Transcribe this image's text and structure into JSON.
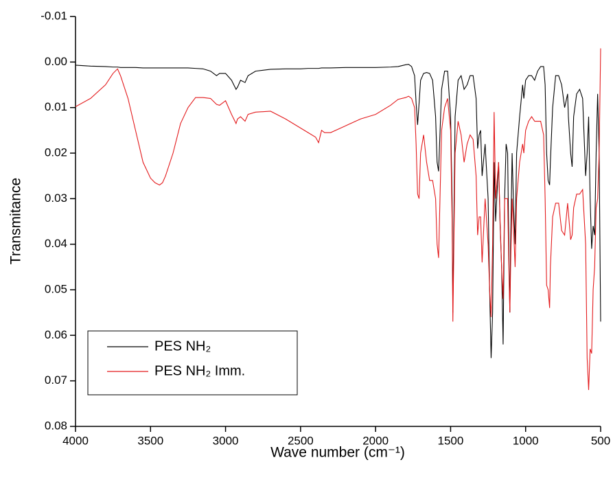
{
  "chart_data": {
    "type": "line",
    "x_label": "Wave number (cm⁻¹)",
    "y_label": "Transmitance",
    "xlim": [
      4000,
      500
    ],
    "xticks": [
      4000,
      3500,
      3000,
      2500,
      2000,
      1500,
      1000,
      500
    ],
    "ylim": [
      -0.01,
      0.08
    ],
    "y_reversed": true,
    "yticks": [
      -0.01,
      {
        "value": 0,
        "label": "0.00"
      },
      0.01,
      0.02,
      0.03,
      0.04,
      0.05,
      0.06,
      0.07,
      0.08
    ],
    "legend": "lower left",
    "x": [
      4000,
      3900,
      3800,
      3750,
      3720,
      3700,
      3650,
      3600,
      3550,
      3500,
      3470,
      3440,
      3420,
      3400,
      3350,
      3300,
      3250,
      3200,
      3150,
      3100,
      3060,
      3040,
      3000,
      2960,
      2930,
      2920,
      2900,
      2870,
      2850,
      2800,
      2700,
      2600,
      2500,
      2450,
      2400,
      2380,
      2360,
      2340,
      2300,
      2200,
      2100,
      2000,
      1900,
      1850,
      1800,
      1780,
      1760,
      1740,
      1730,
      1720,
      1710,
      1700,
      1680,
      1660,
      1640,
      1620,
      1600,
      1590,
      1580,
      1560,
      1540,
      1520,
      1500,
      1490,
      1485,
      1480,
      1470,
      1450,
      1430,
      1410,
      1390,
      1370,
      1350,
      1330,
      1320,
      1310,
      1300,
      1290,
      1270,
      1250,
      1240,
      1230,
      1220,
      1210,
      1200,
      1180,
      1170,
      1160,
      1150,
      1140,
      1130,
      1120,
      1110,
      1105,
      1100,
      1090,
      1080,
      1070,
      1060,
      1040,
      1020,
      1012,
      1000,
      980,
      960,
      940,
      920,
      900,
      880,
      870,
      860,
      850,
      840,
      835,
      820,
      800,
      780,
      760,
      740,
      720,
      715,
      700,
      690,
      680,
      660,
      640,
      620,
      600,
      590,
      580,
      570,
      560,
      550,
      540,
      530,
      520,
      510,
      500
    ],
    "series": [
      {
        "name": "PES NH₂",
        "color": "#000000",
        "values": [
          0.0007,
          0.0009,
          0.001,
          0.0011,
          0.0011,
          0.0012,
          0.0012,
          0.0012,
          0.0013,
          0.0013,
          0.0013,
          0.0013,
          0.0013,
          0.0013,
          0.0013,
          0.0013,
          0.0013,
          0.0014,
          0.0015,
          0.002,
          0.003,
          0.0025,
          0.0025,
          0.004,
          0.006,
          0.0055,
          0.004,
          0.0045,
          0.003,
          0.002,
          0.0016,
          0.0015,
          0.0015,
          0.0014,
          0.0014,
          0.0014,
          0.0013,
          0.0013,
          0.0013,
          0.0012,
          0.0012,
          0.0012,
          0.0011,
          0.001,
          0.0006,
          0.0005,
          0.001,
          0.003,
          0.009,
          0.0138,
          0.009,
          0.004,
          0.0025,
          0.0023,
          0.0025,
          0.004,
          0.012,
          0.022,
          0.024,
          0.006,
          0.002,
          0.002,
          0.012,
          0.03,
          0.055,
          0.04,
          0.012,
          0.004,
          0.003,
          0.006,
          0.005,
          0.003,
          0.003,
          0.008,
          0.019,
          0.016,
          0.015,
          0.025,
          0.018,
          0.03,
          0.05,
          0.065,
          0.055,
          0.022,
          0.035,
          0.022,
          0.036,
          0.045,
          0.062,
          0.03,
          0.018,
          0.02,
          0.045,
          0.055,
          0.04,
          0.02,
          0.032,
          0.04,
          0.02,
          0.012,
          0.005,
          0.008,
          0.004,
          0.003,
          0.003,
          0.004,
          0.002,
          0.001,
          0.001,
          0.005,
          0.02,
          0.026,
          0.027,
          0.022,
          0.01,
          0.003,
          0.003,
          0.005,
          0.01,
          0.007,
          0.012,
          0.02,
          0.023,
          0.012,
          0.007,
          0.006,
          0.008,
          0.025,
          0.02,
          0.012,
          0.03,
          0.041,
          0.036,
          0.038,
          0.02,
          0.007,
          0.02,
          0.057
        ]
      },
      {
        "name": "PES NH₂ Imm.",
        "color": "#e31a1c",
        "values": [
          0.0098,
          0.008,
          0.005,
          0.0025,
          0.0015,
          0.003,
          0.008,
          0.015,
          0.022,
          0.0255,
          0.0265,
          0.027,
          0.0265,
          0.025,
          0.02,
          0.0135,
          0.01,
          0.0078,
          0.0078,
          0.008,
          0.0093,
          0.0095,
          0.0085,
          0.0115,
          0.0135,
          0.0125,
          0.012,
          0.013,
          0.0115,
          0.011,
          0.0108,
          0.0125,
          0.0145,
          0.0155,
          0.0165,
          0.0177,
          0.015,
          0.0155,
          0.0155,
          0.014,
          0.0125,
          0.0115,
          0.0095,
          0.0082,
          0.0078,
          0.0075,
          0.008,
          0.01,
          0.018,
          0.029,
          0.03,
          0.02,
          0.016,
          0.022,
          0.026,
          0.026,
          0.03,
          0.04,
          0.043,
          0.015,
          0.01,
          0.008,
          0.015,
          0.035,
          0.057,
          0.045,
          0.02,
          0.013,
          0.016,
          0.022,
          0.018,
          0.016,
          0.017,
          0.025,
          0.038,
          0.034,
          0.034,
          0.044,
          0.03,
          0.04,
          0.05,
          0.056,
          0.04,
          0.011,
          0.03,
          0.022,
          0.035,
          0.045,
          0.052,
          0.03,
          0.03,
          0.03,
          0.048,
          0.055,
          0.045,
          0.03,
          0.037,
          0.045,
          0.03,
          0.022,
          0.018,
          0.02,
          0.015,
          0.013,
          0.012,
          0.013,
          0.013,
          0.013,
          0.016,
          0.03,
          0.049,
          0.05,
          0.054,
          0.045,
          0.034,
          0.031,
          0.031,
          0.037,
          0.038,
          0.031,
          0.033,
          0.039,
          0.038,
          0.032,
          0.029,
          0.029,
          0.028,
          0.04,
          0.065,
          0.072,
          0.063,
          0.064,
          0.05,
          0.045,
          0.032,
          0.03,
          0.02,
          -0.003
        ]
      }
    ]
  }
}
